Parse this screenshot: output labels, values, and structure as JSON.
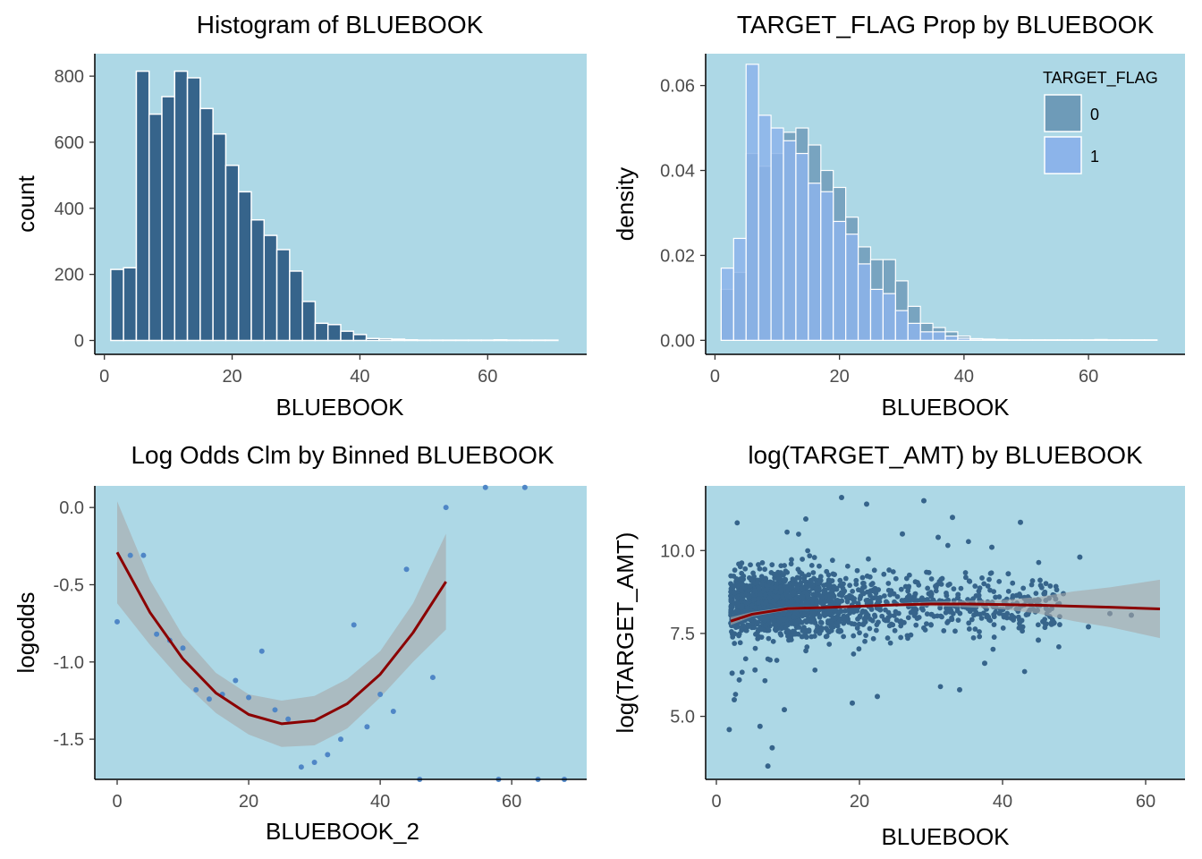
{
  "colors": {
    "panel_bg": "#add8e6",
    "bar": "#36648b",
    "flag0": "#6e9bb8",
    "flag1": "#8cb4ea",
    "points_dark": "#36648b",
    "points_light": "#4f86c6",
    "smooth": "#8b0000",
    "ci_band": "#a9a9a9"
  },
  "chart_data": [
    {
      "id": "hist",
      "type": "bar",
      "title": "Histogram of BLUEBOOK",
      "xlabel": "BLUEBOOK",
      "ylabel": "count",
      "xlim": [
        -1.5,
        75.5
      ],
      "ylim": [
        -42,
        868
      ],
      "xticks": [
        0,
        20,
        40,
        60
      ],
      "yticks": [
        0,
        200,
        400,
        600,
        800
      ],
      "bin_start": 1,
      "bin_width": 2,
      "values": [
        215,
        220,
        815,
        685,
        738,
        815,
        795,
        702,
        625,
        530,
        450,
        365,
        318,
        275,
        210,
        118,
        52,
        48,
        28,
        18,
        6,
        5,
        4,
        2,
        1,
        1,
        1,
        1,
        1,
        1,
        2,
        1,
        1,
        1,
        1
      ]
    },
    {
      "id": "density",
      "type": "bar",
      "title": "TARGET_FLAG Prop by BLUEBOOK",
      "xlabel": "BLUEBOOK",
      "ylabel": "density",
      "xlim": [
        -1.5,
        75.5
      ],
      "ylim": [
        -0.0033,
        0.0675
      ],
      "xticks": [
        0,
        20,
        40,
        60
      ],
      "yticks": [
        0.0,
        0.02,
        0.04,
        0.06
      ],
      "ytick_labels": [
        "0.00",
        "0.02",
        "0.04",
        "0.06"
      ],
      "bin_start": 1,
      "bin_width": 2,
      "legend": {
        "title": "TARGET_FLAG",
        "position": "top-right"
      },
      "series": [
        {
          "name": "0",
          "values": [
            0.012,
            0.016,
            0.044,
            0.041,
            0.044,
            0.049,
            0.05,
            0.046,
            0.04,
            0.036,
            0.029,
            0.022,
            0.019,
            0.019,
            0.014,
            0.008,
            0.004,
            0.003,
            0.002,
            0.001,
            0.0004,
            0.0003,
            0.0002,
            0.0001,
            0.0001,
            0.0001,
            0.0001,
            0.0001,
            0.0001,
            0.0001,
            0.0002,
            0.0001,
            0.0001,
            0.0001,
            0.0001
          ]
        },
        {
          "name": "1",
          "values": [
            0.017,
            0.024,
            0.065,
            0.053,
            0.05,
            0.047,
            0.044,
            0.037,
            0.035,
            0.028,
            0.025,
            0.018,
            0.012,
            0.011,
            0.007,
            0.004,
            0.002,
            0.002,
            0.001,
            0.0005,
            0.0003,
            0.0002,
            0.0001,
            0.0001,
            0.0001,
            0.0001,
            0.0001,
            0.0001,
            0.0001,
            0.0001,
            0.0001,
            0.0001,
            0.0001,
            0.0001,
            0.0001
          ]
        }
      ]
    },
    {
      "id": "logodds",
      "type": "scatter",
      "title": "Log Odds Clm by Binned BLUEBOOK",
      "xlabel": "BLUEBOOK_2",
      "ylabel": "logodds",
      "xlim": [
        -3.4,
        71.4
      ],
      "ylim": [
        -1.76,
        0.14
      ],
      "xticks": [
        0,
        20,
        40,
        60
      ],
      "yticks": [
        0.0,
        -0.5,
        -1.0,
        -1.5
      ],
      "ytick_labels": [
        "0.0",
        "-0.5",
        "-1.0",
        "-1.5"
      ],
      "points": [
        [
          0,
          -0.74
        ],
        [
          2,
          -0.31
        ],
        [
          4,
          -0.31
        ],
        [
          6,
          -0.82
        ],
        [
          8,
          -0.86
        ],
        [
          10,
          -0.91
        ],
        [
          12,
          -1.18
        ],
        [
          14,
          -1.24
        ],
        [
          16,
          -1.21
        ],
        [
          18,
          -1.12
        ],
        [
          20,
          -1.23
        ],
        [
          22,
          -0.93
        ],
        [
          24,
          -1.31
        ],
        [
          26,
          -1.37
        ],
        [
          28,
          -1.68
        ],
        [
          30,
          -1.65
        ],
        [
          32,
          -1.6
        ],
        [
          34,
          -1.5
        ],
        [
          36,
          -0.76
        ],
        [
          38,
          -1.42
        ],
        [
          40,
          -1.21
        ],
        [
          42,
          -1.32
        ],
        [
          44,
          -0.4
        ],
        [
          46,
          -1.76
        ],
        [
          48,
          -1.1
        ],
        [
          50,
          0.0
        ],
        [
          56,
          0.13
        ],
        [
          58,
          -1.76
        ],
        [
          62,
          0.13
        ],
        [
          64,
          -1.76
        ],
        [
          68,
          -1.76
        ]
      ],
      "smooth": [
        [
          0,
          -0.29
        ],
        [
          5,
          -0.68
        ],
        [
          10,
          -0.98
        ],
        [
          15,
          -1.2
        ],
        [
          20,
          -1.34
        ],
        [
          25,
          -1.4
        ],
        [
          30,
          -1.38
        ],
        [
          35,
          -1.27
        ],
        [
          40,
          -1.08
        ],
        [
          45,
          -0.81
        ],
        [
          50,
          -0.48
        ]
      ],
      "ci_half_width": [
        0.33,
        0.21,
        0.15,
        0.13,
        0.13,
        0.15,
        0.16,
        0.16,
        0.15,
        0.19,
        0.31
      ]
    },
    {
      "id": "scatter_amt",
      "type": "scatter",
      "title": "log(TARGET_AMT) by BLUEBOOK",
      "xlabel": "BLUEBOOK",
      "ylabel": "log(TARGET_AMT)",
      "xlim": [
        -1.5,
        65.5
      ],
      "ylim": [
        3.1,
        11.95
      ],
      "xticks": [
        0,
        20,
        40,
        60
      ],
      "yticks": [
        5.0,
        7.5,
        10.0
      ],
      "ytick_labels": [
        "5.0",
        "7.5",
        "10.0"
      ],
      "smooth": [
        [
          2,
          7.87
        ],
        [
          5,
          8.08
        ],
        [
          10,
          8.25
        ],
        [
          15,
          8.28
        ],
        [
          20,
          8.32
        ],
        [
          25,
          8.36
        ],
        [
          30,
          8.39
        ],
        [
          35,
          8.39
        ],
        [
          40,
          8.37
        ],
        [
          45,
          8.35
        ],
        [
          50,
          8.32
        ],
        [
          55,
          8.29
        ],
        [
          62,
          8.24
        ]
      ],
      "ci_half_width": [
        0.12,
        0.07,
        0.05,
        0.04,
        0.04,
        0.05,
        0.07,
        0.1,
        0.14,
        0.25,
        0.45,
        0.6,
        0.88
      ],
      "outliers": [
        [
          7.2,
          3.5
        ],
        [
          7.8,
          4.05
        ],
        [
          6.1,
          4.7
        ],
        [
          1.8,
          4.6
        ],
        [
          2.5,
          5.5
        ],
        [
          9.5,
          5.2
        ],
        [
          34,
          5.8
        ],
        [
          42.5,
          10.85
        ],
        [
          33,
          11.0
        ],
        [
          50.8,
          9.8
        ],
        [
          58,
          8.05
        ],
        [
          48.5,
          8.7
        ],
        [
          55,
          8.1
        ],
        [
          17.5,
          11.6
        ],
        [
          29,
          11.5
        ],
        [
          21,
          11.4
        ],
        [
          12.5,
          10.95
        ],
        [
          26,
          10.5
        ],
        [
          31,
          10.4
        ],
        [
          38.5,
          10.1
        ],
        [
          40.8,
          9.3
        ],
        [
          22.5,
          5.6
        ],
        [
          19,
          5.4
        ],
        [
          37.5,
          6.6
        ],
        [
          45,
          7.3
        ],
        [
          52,
          7.7
        ],
        [
          2.2,
          6.3
        ],
        [
          3.2,
          6.1
        ],
        [
          5.4,
          6.4
        ]
      ],
      "cloud_note": "dense cloud, BLUEBOOK approx 2-50, log(TARGET_AMT) approx 5-11, densest 7.5-9"
    }
  ]
}
